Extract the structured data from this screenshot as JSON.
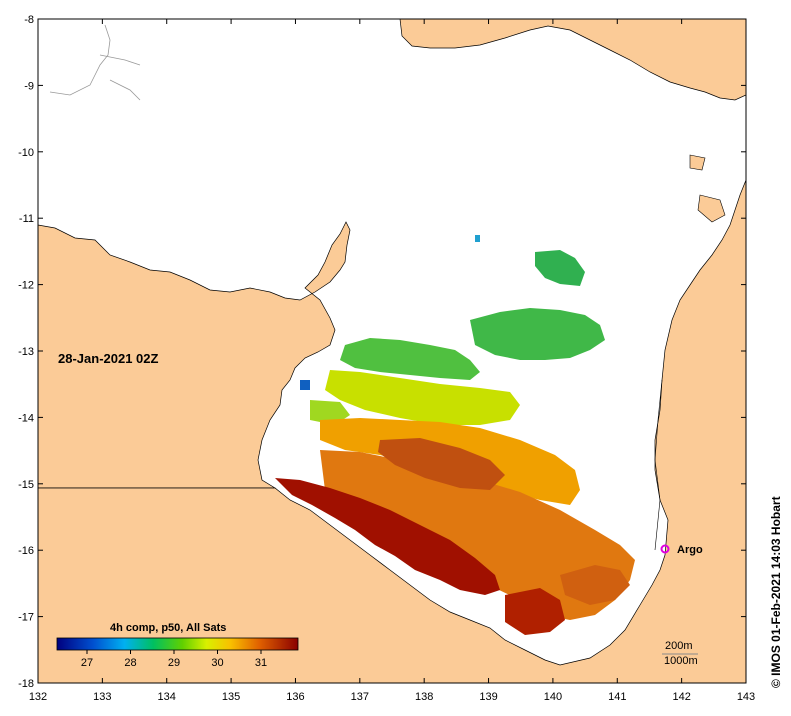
{
  "map": {
    "date_label": "28-Jan-2021 02Z",
    "x_ticks": [
      "132",
      "133",
      "134",
      "135",
      "136",
      "137",
      "138",
      "139",
      "140",
      "141",
      "142",
      "143"
    ],
    "y_ticks": [
      "-8",
      "-9",
      "-10",
      "-11",
      "-12",
      "-13",
      "-14",
      "-15",
      "-16",
      "-17",
      "-18"
    ],
    "colorbar": {
      "title": "4h comp, p50, All Sats",
      "ticks": [
        "27",
        "28",
        "29",
        "30",
        "31"
      ]
    },
    "argo_label": "Argo",
    "argo_color": "#e000e0",
    "land_color": "#fbcb97",
    "contours": {
      "line_200m": "200m",
      "line_1000m": "1000m"
    },
    "credit": "©  IMOS 01-Feb-2021 14:03 Hobart"
  }
}
